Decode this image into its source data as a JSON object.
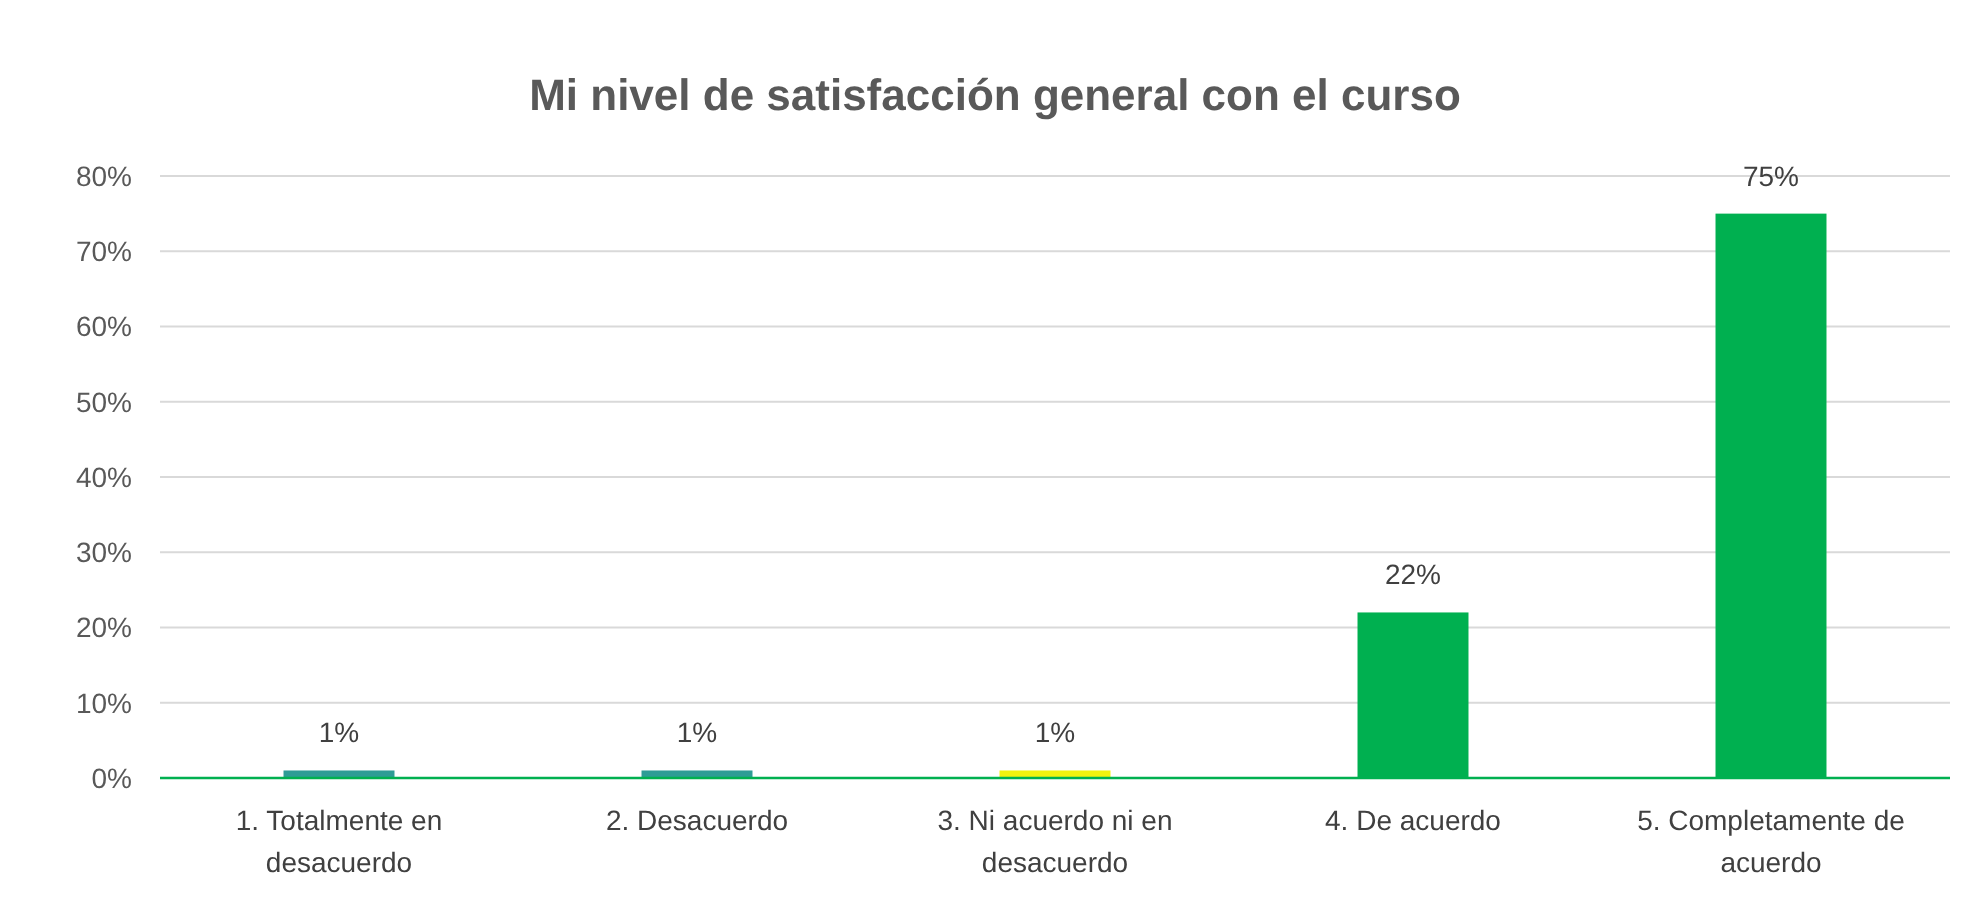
{
  "chart_data": {
    "type": "bar",
    "title": "Mi nivel de satisfacción general con el curso",
    "categories": [
      "1. Totalmente en desacuerdo",
      "2. Desacuerdo",
      "3. Ni acuerdo ni en desacuerdo",
      "4. De acuerdo",
      "5. Completamente de acuerdo"
    ],
    "values": [
      1,
      1,
      1,
      22,
      75
    ],
    "colors": [
      "#2e9c96",
      "#2e9c96",
      "#f2f20f",
      "#00b050",
      "#00b050"
    ],
    "ylim": [
      0,
      80
    ],
    "yticks": [
      {
        "value": 0,
        "label": "0%"
      },
      {
        "value": 10,
        "label": "10%"
      },
      {
        "value": 20,
        "label": "20%"
      },
      {
        "value": 30,
        "label": "30%"
      },
      {
        "value": 40,
        "label": "40%"
      },
      {
        "value": 50,
        "label": "50%"
      },
      {
        "value": 60,
        "label": "60%"
      },
      {
        "value": 70,
        "label": "70%"
      },
      {
        "value": 80,
        "label": "80%"
      }
    ],
    "value_labels": [
      "1%",
      "1%",
      "1%",
      "22%",
      "75%"
    ],
    "grid": "y"
  }
}
